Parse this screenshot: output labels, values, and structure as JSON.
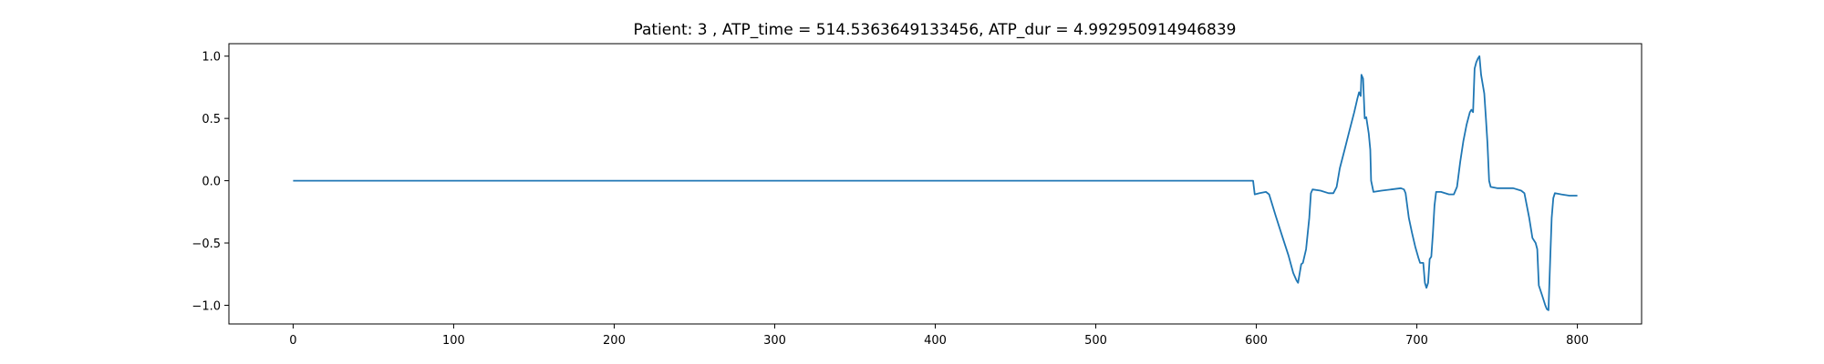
{
  "chart_data": {
    "type": "line",
    "title": "Patient: 3 , ATP_time = 514.5363649133456, ATP_dur = 4.992950914946839",
    "xlabel": "",
    "ylabel": "",
    "xlim": [
      -40,
      840
    ],
    "ylim": [
      -1.15,
      1.1
    ],
    "xticks": [
      0,
      100,
      200,
      300,
      400,
      500,
      600,
      700,
      800
    ],
    "yticks": [
      -1.0,
      -0.5,
      0.0,
      0.5,
      1.0
    ],
    "xtick_labels": [
      "0",
      "100",
      "200",
      "300",
      "400",
      "500",
      "600",
      "700",
      "800"
    ],
    "ytick_labels": [
      "−1.0",
      "−0.5",
      "0.0",
      "0.5",
      "1.0"
    ],
    "grid": false,
    "legend": "none",
    "series": [
      {
        "color": "#1f77b4",
        "points": [
          [
            0,
            0.0
          ],
          [
            598,
            0.0
          ],
          [
            599,
            -0.11
          ],
          [
            602,
            -0.1
          ],
          [
            606,
            -0.09
          ],
          [
            608,
            -0.11
          ],
          [
            612,
            -0.28
          ],
          [
            616,
            -0.44
          ],
          [
            620,
            -0.6
          ],
          [
            623,
            -0.74
          ],
          [
            625,
            -0.8
          ],
          [
            626,
            -0.82
          ],
          [
            628,
            -0.67
          ],
          [
            629,
            -0.66
          ],
          [
            631,
            -0.55
          ],
          [
            633,
            -0.3
          ],
          [
            634,
            -0.1
          ],
          [
            635,
            -0.07
          ],
          [
            640,
            -0.08
          ],
          [
            645,
            -0.1
          ],
          [
            648,
            -0.1
          ],
          [
            650,
            -0.05
          ],
          [
            652,
            0.1
          ],
          [
            655,
            0.25
          ],
          [
            658,
            0.4
          ],
          [
            661,
            0.55
          ],
          [
            663,
            0.66
          ],
          [
            664,
            0.71
          ],
          [
            665,
            0.68
          ],
          [
            665.5,
            0.85
          ],
          [
            666.5,
            0.82
          ],
          [
            667.5,
            0.5
          ],
          [
            668.5,
            0.51
          ],
          [
            670,
            0.38
          ],
          [
            671,
            0.25
          ],
          [
            671.5,
            0.0
          ],
          [
            673,
            -0.09
          ],
          [
            678,
            -0.08
          ],
          [
            684,
            -0.07
          ],
          [
            690,
            -0.06
          ],
          [
            692,
            -0.07
          ],
          [
            693,
            -0.1
          ],
          [
            695,
            -0.3
          ],
          [
            697,
            -0.42
          ],
          [
            699,
            -0.53
          ],
          [
            701,
            -0.62
          ],
          [
            702,
            -0.66
          ],
          [
            704,
            -0.66
          ],
          [
            705,
            -0.82
          ],
          [
            706,
            -0.86
          ],
          [
            707,
            -0.82
          ],
          [
            708,
            -0.63
          ],
          [
            709,
            -0.61
          ],
          [
            710,
            -0.42
          ],
          [
            711,
            -0.2
          ],
          [
            712,
            -0.09
          ],
          [
            715,
            -0.09
          ],
          [
            720,
            -0.11
          ],
          [
            723,
            -0.11
          ],
          [
            725,
            -0.05
          ],
          [
            727,
            0.15
          ],
          [
            729,
            0.32
          ],
          [
            731,
            0.45
          ],
          [
            733,
            0.55
          ],
          [
            734,
            0.57
          ],
          [
            735,
            0.55
          ],
          [
            736,
            0.9
          ],
          [
            737,
            0.95
          ],
          [
            738,
            0.98
          ],
          [
            739,
            1.0
          ],
          [
            740,
            0.85
          ],
          [
            742,
            0.7
          ],
          [
            743,
            0.5
          ],
          [
            744,
            0.3
          ],
          [
            745,
            0.0
          ],
          [
            746,
            -0.05
          ],
          [
            750,
            -0.06
          ],
          [
            755,
            -0.06
          ],
          [
            760,
            -0.06
          ],
          [
            765,
            -0.08
          ],
          [
            767,
            -0.1
          ],
          [
            770,
            -0.3
          ],
          [
            772,
            -0.46
          ],
          [
            774,
            -0.5
          ],
          [
            775,
            -0.55
          ],
          [
            776,
            -0.84
          ],
          [
            778,
            -0.92
          ],
          [
            780,
            -1.0
          ],
          [
            781,
            -1.03
          ],
          [
            782,
            -1.04
          ],
          [
            783,
            -0.65
          ],
          [
            784,
            -0.3
          ],
          [
            785,
            -0.14
          ],
          [
            786,
            -0.1
          ],
          [
            790,
            -0.11
          ],
          [
            795,
            -0.12
          ],
          [
            800,
            -0.12
          ]
        ]
      }
    ]
  }
}
